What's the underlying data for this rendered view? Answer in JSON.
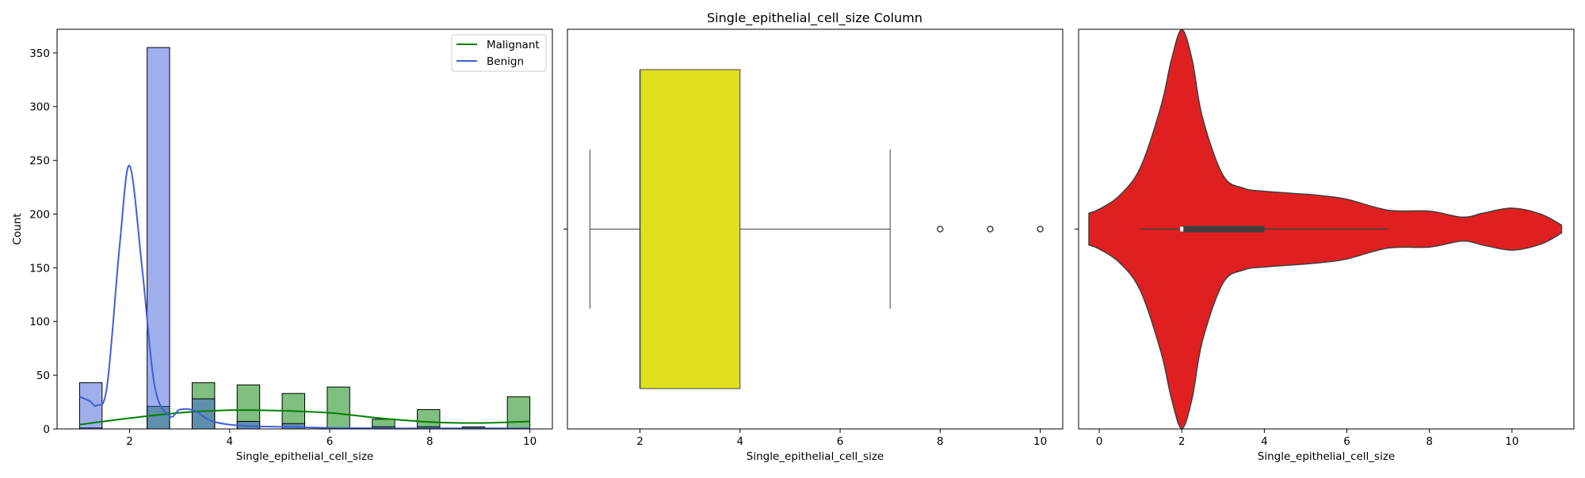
{
  "figure": {
    "title": "Single_epithelial_cell_size Column"
  },
  "chart_data": [
    {
      "type": "histogram",
      "xlabel": "Single_epithelial_cell_size",
      "ylabel": "Count",
      "xlim": [
        0.55,
        10.45
      ],
      "ylim": [
        0,
        372
      ],
      "xticks": [
        2,
        4,
        6,
        8,
        10
      ],
      "yticks": [
        0,
        50,
        100,
        150,
        200,
        250,
        300,
        350
      ],
      "legend": {
        "location": "top-right",
        "entries": [
          "Malignant",
          "Benign"
        ]
      },
      "bin_edges": [
        1.0,
        1.45,
        1.9,
        2.35,
        2.8,
        3.25,
        3.7,
        4.15,
        4.6,
        5.05,
        5.5,
        5.95,
        6.4,
        6.85,
        7.3,
        7.75,
        8.2,
        8.65,
        9.1,
        9.55,
        10.0
      ],
      "series": [
        {
          "name": "Malignant",
          "color": "#008000",
          "fill": "#7fbf7f",
          "counts": [
            1,
            0,
            0,
            21,
            0,
            43,
            0,
            41,
            0,
            33,
            0,
            39,
            0,
            9,
            0,
            18,
            0,
            2,
            0,
            30
          ],
          "kde": {
            "x": [
              1.0,
              2.0,
              3.0,
              4.0,
              5.0,
              6.0,
              7.0,
              8.0,
              9.0,
              10.0
            ],
            "y": [
              4,
              10,
              15,
              17.5,
              17,
              15,
              10,
              6.5,
              5.5,
              7
            ]
          }
        },
        {
          "name": "Benign",
          "color": "#3f5fd8",
          "fill": "#9fb0ee",
          "counts": [
            43,
            0,
            0,
            355,
            0,
            28,
            0,
            7,
            0,
            5,
            0,
            0,
            0,
            2,
            0,
            2,
            0,
            1,
            0,
            0
          ],
          "kde": {
            "x": [
              1.0,
              1.2,
              1.35,
              1.55,
              1.8,
              2.0,
              2.25,
              2.5,
              2.8,
              3.0,
              3.3,
              3.6,
              4.0,
              4.5,
              5.0,
              6.0,
              7.0,
              8.0,
              9.0,
              10.0
            ],
            "y": [
              30,
              26,
              22,
              40,
              170,
              245,
              150,
              40,
              12,
              18,
              17,
              8,
              4,
              2.5,
              2,
              1,
              0.5,
              0.5,
              0.5,
              0.5
            ]
          }
        }
      ]
    },
    {
      "type": "box",
      "xlabel": "Single_epithelial_cell_size",
      "xlim": [
        0.55,
        10.45
      ],
      "xticks": [
        2,
        4,
        6,
        8,
        10
      ],
      "box_color": "#e0e01f",
      "whisker_low": 1,
      "q1": 2,
      "median": 2,
      "q3": 4,
      "whisker_high": 7,
      "outliers": [
        8,
        9,
        10
      ]
    },
    {
      "type": "violin",
      "xlabel": "Single_epithelial_cell_size",
      "xlim": [
        -0.5,
        11.5
      ],
      "xticks": [
        0,
        2,
        4,
        6,
        8,
        10
      ],
      "color": "#e02020",
      "whisker_low": 1,
      "q1": 2,
      "median": 2,
      "q3": 4,
      "whisker_high": 7,
      "density": {
        "x": [
          -0.25,
          0.0,
          0.5,
          1.0,
          1.5,
          1.75,
          2.0,
          2.25,
          2.5,
          3.0,
          3.5,
          4.0,
          5.0,
          5.5,
          6.0,
          7.0,
          8.0,
          8.8,
          9.3,
          10.0,
          10.7,
          11.2
        ],
        "y": [
          0.08,
          0.1,
          0.17,
          0.31,
          0.62,
          0.85,
          1.0,
          0.85,
          0.56,
          0.27,
          0.205,
          0.19,
          0.175,
          0.165,
          0.15,
          0.095,
          0.09,
          0.06,
          0.08,
          0.105,
          0.075,
          0.02
        ]
      }
    }
  ]
}
